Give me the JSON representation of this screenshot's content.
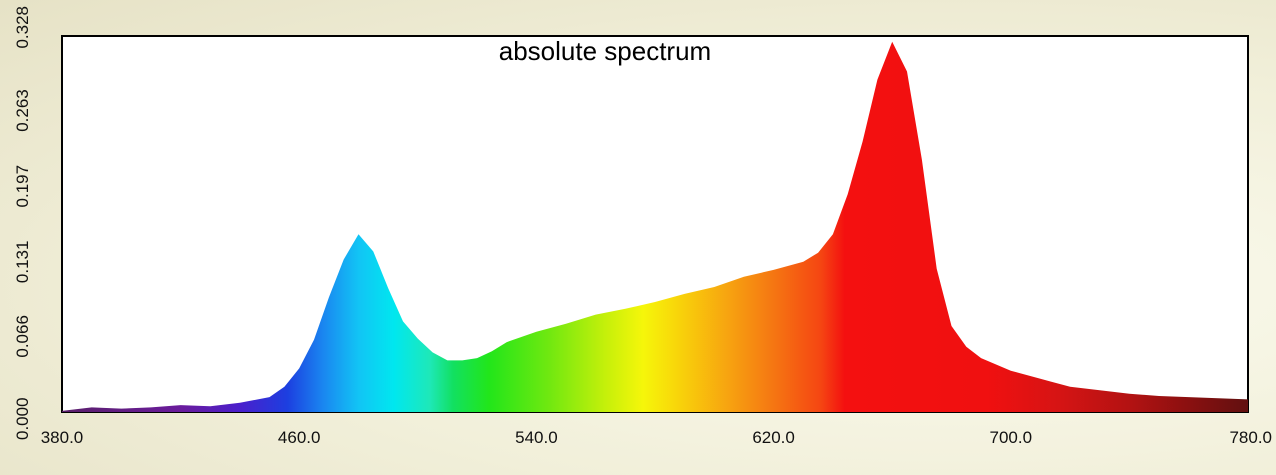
{
  "chart_data": {
    "type": "area",
    "title": "absolute spectrum",
    "xlabel": "",
    "ylabel": "",
    "xlim": [
      380.0,
      780.0
    ],
    "ylim": [
      0.0,
      0.328
    ],
    "x_ticks": [
      "380.0",
      "460.0",
      "540.0",
      "620.0",
      "700.0",
      "780.0"
    ],
    "y_ticks": [
      "0.000",
      "0.066",
      "0.131",
      "0.197",
      "0.263",
      "0.328"
    ],
    "grid": false,
    "fill": "wavelength-colored spectrum",
    "series": [
      {
        "x": [
          380,
          390,
          400,
          410,
          420,
          430,
          440,
          450,
          455,
          460,
          465,
          470,
          475,
          480,
          485,
          490,
          495,
          500,
          505,
          510,
          515,
          520,
          525,
          530,
          540,
          550,
          560,
          570,
          580,
          590,
          600,
          610,
          620,
          630,
          635,
          640,
          645,
          650,
          655,
          660,
          665,
          670,
          675,
          680,
          685,
          690,
          700,
          710,
          720,
          730,
          740,
          750,
          760,
          770,
          780
        ],
        "values": [
          0.001,
          0.004,
          0.003,
          0.004,
          0.006,
          0.005,
          0.008,
          0.013,
          0.022,
          0.038,
          0.063,
          0.1,
          0.133,
          0.155,
          0.14,
          0.108,
          0.079,
          0.064,
          0.052,
          0.045,
          0.045,
          0.047,
          0.053,
          0.061,
          0.07,
          0.077,
          0.085,
          0.09,
          0.096,
          0.103,
          0.109,
          0.118,
          0.124,
          0.131,
          0.139,
          0.155,
          0.19,
          0.236,
          0.29,
          0.323,
          0.297,
          0.22,
          0.125,
          0.075,
          0.057,
          0.047,
          0.036,
          0.029,
          0.022,
          0.019,
          0.016,
          0.014,
          0.013,
          0.012,
          0.011
        ]
      }
    ]
  }
}
